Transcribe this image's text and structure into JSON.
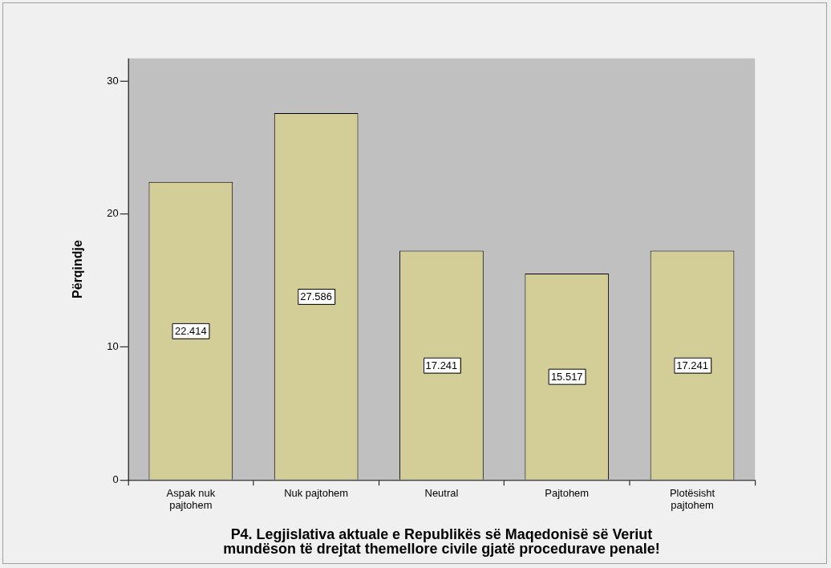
{
  "chart_data": {
    "type": "bar",
    "xlabel": "P4. Legjislativa aktuale e Republikës së Maqedonisë së Veriut mundëson të drejtat themellore civile gjatë procedurave penale!",
    "ylabel": "Përqindje",
    "categories": [
      "Aspak nuk pajtohem",
      "Nuk pajtohem",
      "Neutral",
      "Pajtohem",
      "Plotësisht pajtohem"
    ],
    "values": [
      22.414,
      27.586,
      17.241,
      15.517,
      17.241
    ],
    "color": "#d3ce97",
    "ylim": [
      0,
      31.7
    ],
    "yticks": [
      0,
      10,
      20,
      30
    ],
    "data_labels": true
  }
}
